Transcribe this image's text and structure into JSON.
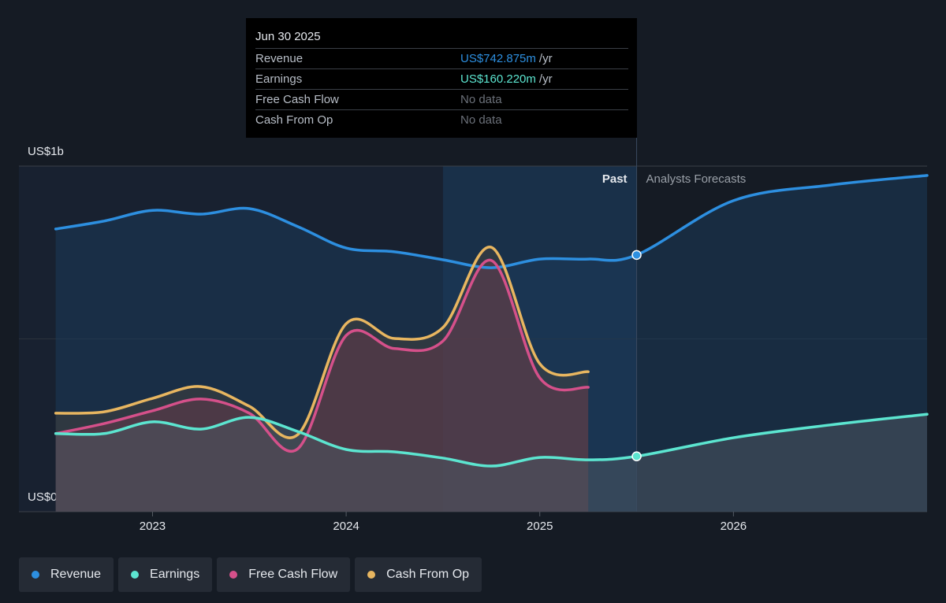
{
  "chart_data": {
    "type": "line",
    "x": [
      2022.5,
      2022.75,
      2023.0,
      2023.25,
      2023.5,
      2023.75,
      2024.0,
      2024.25,
      2024.5,
      2024.75,
      2025.0,
      2025.25,
      2025.5,
      2026.0,
      2026.5,
      2027.0
    ],
    "series": [
      {
        "name": "Revenue",
        "color": "#2d8fe0",
        "values": [
          818,
          841,
          872,
          861,
          877,
          825,
          763,
          752,
          729,
          706,
          731,
          731,
          742.875,
          900,
          945,
          973
        ]
      },
      {
        "name": "Earnings",
        "color": "#5ce5d0",
        "values": [
          226,
          226,
          260,
          239,
          273,
          232,
          180,
          173,
          155,
          132,
          157,
          150,
          160.22,
          214,
          251,
          282
        ]
      },
      {
        "name": "Free Cash Flow",
        "color": "#d5508a",
        "values": [
          226,
          255,
          292,
          326,
          285,
          182,
          510,
          472,
          494,
          727,
          387,
          360,
          null,
          null,
          null,
          null
        ]
      },
      {
        "name": "Cash From Op",
        "color": "#e8b660",
        "values": [
          285,
          289,
          328,
          362,
          305,
          223,
          544,
          501,
          533,
          765,
          428,
          405,
          null,
          null,
          null,
          null
        ]
      }
    ],
    "xlim": [
      2022.31,
      2027.0
    ],
    "xticks": [
      2023,
      2024,
      2025,
      2026
    ],
    "ylim": [
      0,
      1000
    ],
    "yticks": [
      {
        "value": 0,
        "label": "US$0"
      },
      {
        "value": 1000,
        "label": "US$1b"
      }
    ],
    "minor_gridlines": [
      500
    ],
    "highlight": [
      2024.5,
      2025.5
    ],
    "divider": 2025.5,
    "past_label": "Past",
    "forecast_label": "Analysts Forecasts",
    "tooltip": {
      "date": "Jun 30 2025",
      "rows": [
        {
          "label": "Revenue",
          "value": "US$742.875m",
          "unit": "/yr",
          "color": "#2d8fe0"
        },
        {
          "label": "Earnings",
          "value": "US$160.220m",
          "unit": "/yr",
          "color": "#5ce5d0"
        },
        {
          "label": "Free Cash Flow",
          "value": "No data",
          "color": "#6b7079"
        },
        {
          "label": "Cash From Op",
          "value": "No data",
          "color": "#6b7079"
        }
      ]
    }
  }
}
